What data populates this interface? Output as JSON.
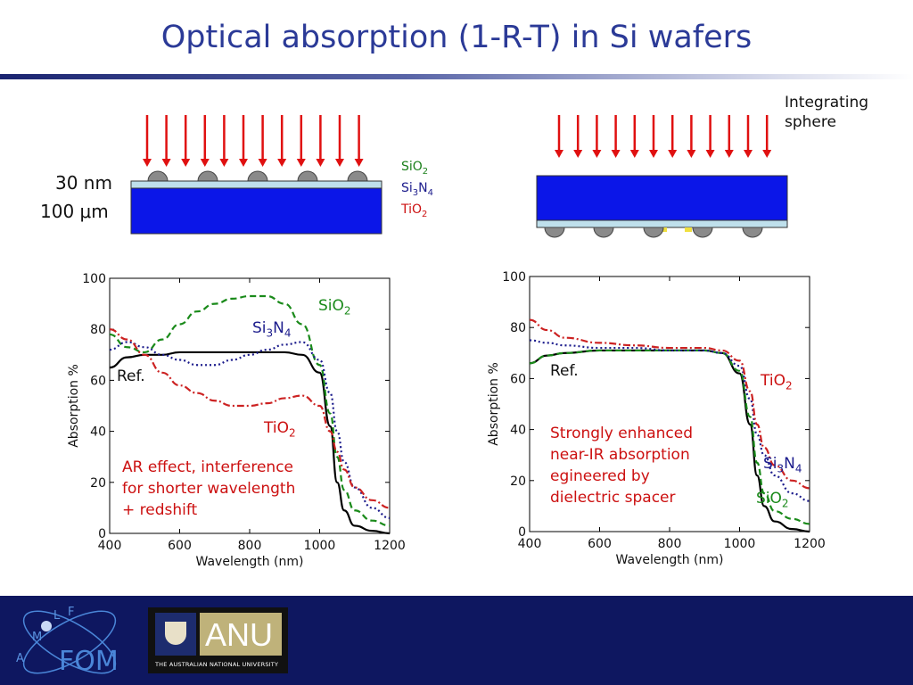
{
  "slide": {
    "title": "Optical absorption (1-R-T) in Si wafers"
  },
  "left_diagram": {
    "layer_label": "30 nm",
    "wafer_label": "100 μm",
    "legend": [
      {
        "base": "SiO",
        "sub": "2",
        "color": "#1a7f1a"
      },
      {
        "base": "Si",
        "sub": "3",
        "base2": "N",
        "sub2": "4",
        "color": "#1c1c8c"
      },
      {
        "base": "TiO",
        "sub": "2",
        "color": "#cc1111"
      }
    ]
  },
  "right_diagram": {
    "sphere_label_line1": "Integrating",
    "sphere_label_line2": "sphere"
  },
  "chart_data": [
    {
      "type": "line",
      "xlabel": "Wavelength (nm)",
      "ylabel": "Absorption %",
      "xlim": [
        400,
        1200
      ],
      "ylim": [
        0,
        100
      ],
      "xticks": [
        "400",
        "600",
        "800",
        "1000",
        "1200"
      ],
      "yticks": [
        "0",
        "20",
        "40",
        "60",
        "80",
        "100"
      ],
      "grid": false,
      "series": [
        {
          "name": "Ref.",
          "color": "#000000",
          "style": "solid",
          "x": [
            400,
            450,
            500,
            550,
            600,
            700,
            800,
            900,
            950,
            1000,
            1030,
            1050,
            1070,
            1100,
            1150,
            1200
          ],
          "y": [
            65,
            69,
            70,
            70,
            71,
            71,
            71,
            71,
            70,
            63,
            42,
            20,
            9,
            3,
            1,
            0
          ]
        },
        {
          "name": "SiO2",
          "color": "#1a8a1a",
          "style": "dashed",
          "x": [
            400,
            450,
            500,
            550,
            600,
            650,
            700,
            750,
            800,
            850,
            900,
            950,
            1000,
            1030,
            1050,
            1070,
            1100,
            1150,
            1200
          ],
          "y": [
            78,
            73,
            71,
            76,
            82,
            87,
            90,
            92,
            93,
            93,
            90,
            82,
            66,
            47,
            30,
            17,
            9,
            5,
            3
          ]
        },
        {
          "name": "Si3N4",
          "color": "#1c1c8c",
          "style": "dotted",
          "x": [
            400,
            450,
            500,
            550,
            600,
            650,
            700,
            750,
            800,
            850,
            900,
            950,
            1000,
            1030,
            1050,
            1070,
            1100,
            1150,
            1200
          ],
          "y": [
            72,
            75,
            73,
            70,
            68,
            66,
            66,
            68,
            70,
            72,
            74,
            75,
            68,
            55,
            40,
            28,
            18,
            10,
            6
          ]
        },
        {
          "name": "TiO2",
          "color": "#cc2222",
          "style": "dashdot",
          "x": [
            400,
            450,
            500,
            550,
            600,
            650,
            700,
            750,
            800,
            850,
            900,
            950,
            1000,
            1030,
            1050,
            1070,
            1100,
            1150,
            1200
          ],
          "y": [
            80,
            76,
            70,
            63,
            58,
            55,
            52,
            50,
            50,
            51,
            53,
            54,
            50,
            40,
            32,
            25,
            18,
            13,
            10
          ]
        }
      ]
    },
    {
      "type": "line",
      "xlabel": "Wavelength (nm)",
      "ylabel": "Absorption %",
      "xlim": [
        400,
        1200
      ],
      "ylim": [
        0,
        100
      ],
      "xticks": [
        "400",
        "600",
        "800",
        "1000",
        "1200"
      ],
      "yticks": [
        "0",
        "20",
        "40",
        "60",
        "80",
        "100"
      ],
      "grid": false,
      "series": [
        {
          "name": "Ref.",
          "color": "#000000",
          "style": "solid",
          "x": [
            400,
            450,
            500,
            600,
            700,
            800,
            900,
            950,
            1000,
            1030,
            1050,
            1070,
            1100,
            1150,
            1200
          ],
          "y": [
            66,
            69,
            70,
            71,
            71,
            71,
            71,
            70,
            62,
            42,
            22,
            10,
            4,
            1,
            0
          ]
        },
        {
          "name": "SiO2",
          "color": "#1a8a1a",
          "style": "dashed",
          "x": [
            400,
            450,
            500,
            600,
            700,
            800,
            900,
            950,
            1000,
            1030,
            1050,
            1070,
            1100,
            1150,
            1200
          ],
          "y": [
            66,
            69,
            70,
            71,
            71,
            71,
            71,
            70,
            63,
            45,
            27,
            15,
            8,
            5,
            3
          ]
        },
        {
          "name": "Si3N4",
          "color": "#1c1c8c",
          "style": "dotted",
          "x": [
            400,
            450,
            500,
            600,
            700,
            800,
            900,
            950,
            1000,
            1030,
            1050,
            1070,
            1100,
            1150,
            1200
          ],
          "y": [
            75,
            74,
            73,
            72,
            72,
            71,
            71,
            70,
            65,
            52,
            38,
            30,
            22,
            15,
            12
          ]
        },
        {
          "name": "TiO2",
          "color": "#cc2222",
          "style": "dashdot",
          "x": [
            400,
            450,
            500,
            600,
            700,
            800,
            900,
            950,
            1000,
            1030,
            1050,
            1070,
            1100,
            1150,
            1200
          ],
          "y": [
            83,
            79,
            76,
            74,
            73,
            72,
            72,
            71,
            67,
            55,
            42,
            33,
            26,
            20,
            17
          ]
        }
      ]
    }
  ],
  "chart_labels": {
    "left": {
      "ref": "Ref.",
      "sio2": {
        "base": "SiO",
        "sub": "2"
      },
      "si3n4": {
        "base": "Si",
        "sub": "3",
        "base2": "N",
        "sub2": "4"
      },
      "tio2": {
        "base": "TiO",
        "sub": "2"
      },
      "annotation": [
        "AR effect, interference",
        "for shorter wavelength",
        "+ redshift"
      ]
    },
    "right": {
      "ref": "Ref.",
      "tio2": {
        "base": "TiO",
        "sub": "2"
      },
      "si3n4": {
        "base": "Si",
        "sub": "3",
        "base2": "N",
        "sub2": "4"
      },
      "sio2": {
        "base": "SiO",
        "sub": "2"
      },
      "annotation": [
        "Strongly enhanced",
        "near-IR absorption",
        "egineered by",
        "dielectric spacer"
      ]
    }
  },
  "footer": {
    "logo1_text": "FOM",
    "logo1_letters": [
      "A",
      "M",
      "L",
      "F"
    ],
    "logo2_name": "ANU",
    "logo2_subtitle": "THE AUSTRALIAN NATIONAL UNIVERSITY"
  }
}
